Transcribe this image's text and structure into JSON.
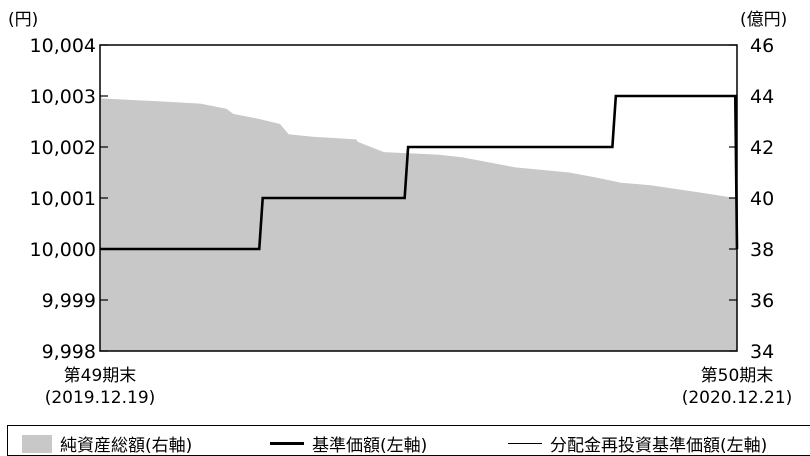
{
  "chart_data": {
    "type": "line",
    "left_unit": "(円)",
    "right_unit": "(億円)",
    "left_axis": {
      "ticks": [
        "10,004",
        "10,003",
        "10,002",
        "10,001",
        "10,000",
        "9,999",
        "9,998"
      ],
      "min": 9998,
      "max": 10004
    },
    "right_axis": {
      "ticks": [
        "46",
        "44",
        "42",
        "40",
        "38",
        "36",
        "34"
      ],
      "min": 34,
      "max": 46
    },
    "x_labels": {
      "start": {
        "line1": "第49期末",
        "line2": "(2019.12.19)"
      },
      "end": {
        "line1": "第50期末",
        "line2": "(2020.12.21)"
      }
    },
    "x": {
      "start": "2019-12-19",
      "end": "2020-12-21"
    },
    "series": [
      {
        "name": "純資産総額(右軸)",
        "type": "area",
        "axis": "right",
        "color": "#c8c8c8",
        "x": [
          "2019-12-19",
          "2019-12-20",
          "2020-01-20",
          "2020-02-15",
          "2020-03-01",
          "2020-03-05",
          "2020-03-20",
          "2020-04-01",
          "2020-04-06",
          "2020-04-20",
          "2020-05-15",
          "2020-05-16",
          "2020-05-31",
          "2020-07-01",
          "2020-07-15",
          "2020-08-15",
          "2020-09-15",
          "2020-10-01",
          "2020-10-15",
          "2020-11-01",
          "2020-12-01",
          "2020-12-20",
          "2020-12-21"
        ],
        "values": [
          44.1,
          43.9,
          43.8,
          43.7,
          43.5,
          43.3,
          43.1,
          42.9,
          42.5,
          42.4,
          42.3,
          42.2,
          41.8,
          41.7,
          41.6,
          41.2,
          41.0,
          40.8,
          40.6,
          40.5,
          40.2,
          40.0,
          40.0
        ]
      },
      {
        "name": "基準価額(左軸)",
        "type": "line",
        "axis": "left",
        "color": "#000000",
        "x": [
          "2019-12-19",
          "2020-03-20",
          "2020-03-22",
          "2020-06-12",
          "2020-06-14",
          "2020-10-10",
          "2020-10-12",
          "2020-12-20",
          "2020-12-21"
        ],
        "values": [
          10000,
          10000,
          10001,
          10001,
          10002,
          10002,
          10003,
          10003,
          10000
        ]
      },
      {
        "name": "分配金再投資基準価額(左軸)",
        "type": "line",
        "axis": "left",
        "color": "#000000",
        "x": [
          "2019-12-19",
          "2020-03-20",
          "2020-03-22",
          "2020-06-12",
          "2020-06-14",
          "2020-10-10",
          "2020-10-12",
          "2020-12-20",
          "2020-12-21"
        ],
        "values": [
          10000,
          10000,
          10001,
          10001,
          10002,
          10002,
          10003,
          10003,
          10000
        ]
      }
    ]
  }
}
